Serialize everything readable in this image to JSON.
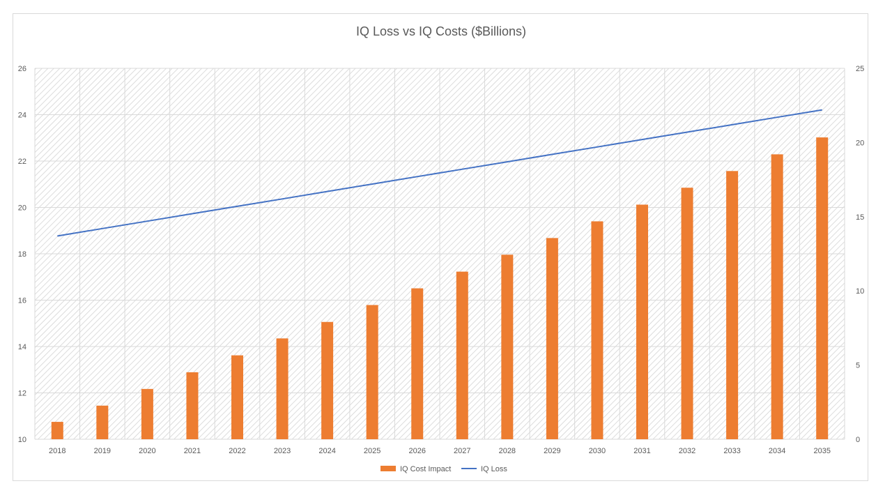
{
  "chart_data": {
    "type": "bar",
    "title": "IQ Loss vs IQ Costs ($Billions)",
    "categories": [
      "2018",
      "2019",
      "2020",
      "2021",
      "2022",
      "2023",
      "2024",
      "2025",
      "2026",
      "2027",
      "2028",
      "2029",
      "2030",
      "2031",
      "2032",
      "2033",
      "2034",
      "2035"
    ],
    "series": [
      {
        "name": "IQ Cost Impact",
        "type": "bar",
        "axis": "left",
        "color": "#ED7D31",
        "values": [
          10.75,
          11.45,
          12.17,
          12.89,
          13.62,
          14.35,
          15.06,
          15.79,
          16.51,
          17.23,
          17.96,
          18.68,
          19.4,
          20.12,
          20.85,
          21.57,
          22.29,
          23.02
        ]
      },
      {
        "name": "IQ Loss",
        "type": "line",
        "axis": "right",
        "color": "#4472C4",
        "values": [
          13.7,
          14.2,
          14.7,
          15.2,
          15.7,
          16.2,
          16.7,
          17.2,
          17.7,
          18.2,
          18.7,
          19.2,
          19.7,
          20.2,
          20.7,
          21.2,
          21.7,
          22.2
        ]
      }
    ],
    "y_left": {
      "min": 10,
      "max": 26,
      "step": 2,
      "ticks": [
        "10",
        "12",
        "14",
        "16",
        "18",
        "20",
        "22",
        "24",
        "26"
      ]
    },
    "y_right": {
      "min": 0,
      "max": 25,
      "step": 5,
      "ticks": [
        "0",
        "5",
        "10",
        "15",
        "20",
        "25"
      ]
    },
    "grid": true,
    "legend_position": "bottom",
    "legend": [
      "IQ Cost Impact",
      "IQ Loss"
    ]
  }
}
